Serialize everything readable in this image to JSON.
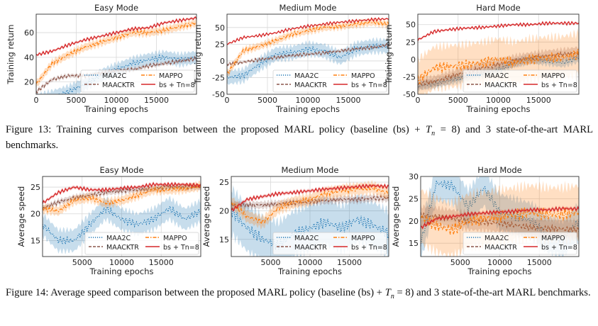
{
  "legend_colors": {
    "MAA2C": "#1f77b4",
    "MAACKTR": "#8c564b",
    "MAPPO": "#ff7f0e",
    "bs + Tn=8": "#d62728"
  },
  "captions": {
    "fig13": {
      "before": "Figure 13: Training curves comparison between the proposed MARL policy (baseline (bs) + ",
      "math_var": "T",
      "math_sub": "n",
      "after": " = 8) and 3 state-of-the-art MARL benchmarks."
    },
    "fig14": {
      "before": "Figure 14: Average speed comparison between the proposed MARL policy (baseline (bs) + ",
      "math_var": "T",
      "math_sub": "n",
      "after": " = 8) and 3 state-of-the-art MARL benchmarks."
    }
  },
  "chart_data": [
    {
      "type": "line",
      "title": "Easy Mode",
      "xlabel": "Training epochs",
      "ylabel": "Training return",
      "xlim": [
        0,
        20000
      ],
      "ylim": [
        10,
        75
      ],
      "xticks": [
        0,
        5000,
        10000,
        15000
      ],
      "yticks": [
        20,
        40,
        60
      ],
      "grid": true,
      "legend": "lower-right",
      "x": [
        0,
        2000,
        4000,
        6000,
        8000,
        10000,
        12000,
        14000,
        16000,
        18000,
        20000
      ],
      "series": [
        {
          "name": "MAA2C",
          "style": "dotted",
          "band": 5,
          "values": [
            5,
            8,
            12,
            18,
            25,
            30,
            35,
            38,
            40,
            38,
            40
          ]
        },
        {
          "name": "MAACKTR",
          "style": "dashed",
          "band": 1.5,
          "values": [
            12,
            22,
            25,
            25,
            27,
            29,
            30,
            33,
            35,
            37,
            39
          ]
        },
        {
          "name": "MAPPO",
          "style": "dashdot",
          "band": 3,
          "values": [
            18,
            35,
            42,
            48,
            52,
            56,
            60,
            60,
            62,
            65,
            68
          ]
        },
        {
          "name": "bs + Tn=8",
          "style": "solid",
          "band": 1,
          "values": [
            42,
            45,
            50,
            54,
            57,
            60,
            63,
            64,
            68,
            70,
            72
          ]
        }
      ]
    },
    {
      "type": "line",
      "title": "Medium Mode",
      "xlabel": "Training epochs",
      "ylabel": "Training return",
      "xlim": [
        0,
        20000
      ],
      "ylim": [
        -50,
        70
      ],
      "xticks": [
        0,
        5000,
        10000,
        15000
      ],
      "yticks": [
        -50,
        -25,
        0,
        25,
        50
      ],
      "grid": true,
      "legend": "lower-right",
      "x": [
        0,
        2000,
        4000,
        6000,
        8000,
        10000,
        12000,
        14000,
        16000,
        18000,
        20000
      ],
      "series": [
        {
          "name": "MAA2C",
          "style": "dotted",
          "band": 10,
          "values": [
            -25,
            -22,
            -5,
            10,
            12,
            18,
            15,
            5,
            18,
            22,
            22
          ]
        },
        {
          "name": "MAACKTR",
          "style": "dashed",
          "band": 2,
          "values": [
            -5,
            -2,
            2,
            5,
            8,
            10,
            12,
            15,
            18,
            20,
            24
          ]
        },
        {
          "name": "MAPPO",
          "style": "dashdot",
          "band": 5,
          "values": [
            -20,
            15,
            22,
            30,
            40,
            45,
            50,
            52,
            55,
            58,
            55
          ]
        },
        {
          "name": "bs + Tn=8",
          "style": "solid",
          "band": 1,
          "values": [
            25,
            35,
            38,
            42,
            48,
            52,
            55,
            58,
            60,
            62,
            63
          ]
        }
      ]
    },
    {
      "type": "line",
      "title": "Hard Mode",
      "xlabel": "Training epochs",
      "ylabel": "Training return",
      "xlim": [
        0,
        20000
      ],
      "ylim": [
        -50,
        65
      ],
      "xticks": [
        0,
        5000,
        10000,
        15000
      ],
      "yticks": [
        -50,
        -25,
        0,
        25,
        50
      ],
      "grid": true,
      "legend": "lower-right",
      "x": [
        0,
        2000,
        4000,
        6000,
        8000,
        10000,
        12000,
        14000,
        16000,
        18000,
        20000
      ],
      "series": [
        {
          "name": "MAA2C",
          "style": "dotted",
          "band": 6,
          "values": [
            -38,
            -35,
            -30,
            -25,
            -20,
            -15,
            -5,
            0,
            -2,
            -5,
            2
          ]
        },
        {
          "name": "MAACKTR",
          "style": "dashed",
          "band": 8,
          "values": [
            -35,
            -32,
            -25,
            -18,
            -12,
            -7,
            -2,
            2,
            5,
            7,
            10
          ]
        },
        {
          "name": "MAPPO",
          "style": "dashdot",
          "band": 30,
          "values": [
            -30,
            -12,
            -10,
            -8,
            -5,
            0,
            -5,
            0,
            2,
            3,
            8
          ]
        },
        {
          "name": "bs + Tn=8",
          "style": "solid",
          "band": 1.5,
          "values": [
            28,
            40,
            43,
            45,
            46,
            48,
            50,
            50,
            52,
            52,
            52
          ]
        }
      ]
    },
    {
      "type": "line",
      "title": "Easy Mode",
      "xlabel": "Training epochs",
      "ylabel": "Average speed",
      "xlim": [
        0,
        20000
      ],
      "ylim": [
        12,
        27
      ],
      "xticks": [
        5000,
        10000,
        15000
      ],
      "yticks": [
        15,
        20,
        25
      ],
      "grid": true,
      "legend": "lower-right",
      "x": [
        0,
        2000,
        4000,
        6000,
        8000,
        10000,
        12000,
        14000,
        16000,
        18000,
        20000
      ],
      "series": [
        {
          "name": "MAA2C",
          "style": "dotted",
          "band": 2,
          "values": [
            18,
            15,
            15,
            18,
            21,
            19,
            18,
            19,
            21,
            19,
            20.5
          ]
        },
        {
          "name": "MAACKTR",
          "style": "dashed",
          "band": 0.5,
          "values": [
            21,
            22.2,
            23,
            23.5,
            24,
            24.3,
            24.5,
            24.7,
            25,
            25,
            25
          ]
        },
        {
          "name": "MAPPO",
          "style": "dashdot",
          "band": 0.8,
          "values": [
            21,
            20.5,
            22.5,
            23,
            22,
            22.5,
            23.5,
            24.5,
            24.5,
            24.7,
            25.2
          ]
        },
        {
          "name": "bs + Tn=8",
          "style": "solid",
          "band": 0.3,
          "values": [
            22,
            24,
            25,
            24.5,
            24.5,
            24.8,
            25,
            25.5,
            25.5,
            25.5,
            25.3
          ]
        }
      ]
    },
    {
      "type": "line",
      "title": "Medium Mode",
      "xlabel": "Training epochs",
      "ylabel": "Average speed",
      "xlim": [
        0,
        20000
      ],
      "ylim": [
        12,
        26
      ],
      "xticks": [
        5000,
        10000,
        15000
      ],
      "yticks": [
        15,
        20,
        25
      ],
      "grid": true,
      "legend": "lower-right",
      "x": [
        0,
        2000,
        4000,
        6000,
        8000,
        10000,
        12000,
        14000,
        16000,
        18000,
        20000
      ],
      "series": [
        {
          "name": "MAA2C",
          "style": "dotted",
          "band": 4,
          "values": [
            20,
            17,
            15,
            14,
            16,
            17,
            18,
            17,
            18.5,
            17.5,
            16
          ]
        },
        {
          "name": "MAACKTR",
          "style": "dashed",
          "band": 0.6,
          "values": [
            21,
            21,
            21,
            21.2,
            21.4,
            21.6,
            21.8,
            22,
            22,
            22.2,
            22.2
          ]
        },
        {
          "name": "MAPPO",
          "style": "dashdot",
          "band": 1,
          "values": [
            21.5,
            19,
            18,
            20.5,
            21.5,
            22,
            23,
            23.5,
            23.8,
            24,
            23
          ]
        },
        {
          "name": "bs + Tn=8",
          "style": "solid",
          "band": 0.3,
          "values": [
            20,
            22,
            22.5,
            23,
            23.2,
            23.5,
            23.8,
            24,
            24.2,
            24.4,
            24.2
          ]
        }
      ]
    },
    {
      "type": "line",
      "title": "Hard Mode",
      "xlabel": "Training epochs",
      "ylabel": "Average speed",
      "xlim": [
        0,
        20000
      ],
      "ylim": [
        12,
        30
      ],
      "xticks": [
        5000,
        10000,
        15000
      ],
      "yticks": [
        15,
        20,
        25,
        30
      ],
      "grid": true,
      "legend": "lower-right",
      "x": [
        0,
        2000,
        4000,
        6000,
        8000,
        10000,
        12000,
        14000,
        16000,
        18000,
        20000
      ],
      "series": [
        {
          "name": "MAA2C",
          "style": "dotted",
          "band": 4,
          "values": [
            15,
            28.5,
            28,
            23,
            27.5,
            22,
            21,
            20,
            17,
            16,
            20
          ]
        },
        {
          "name": "MAACKTR",
          "style": "dashed",
          "band": 2,
          "values": [
            21.3,
            21,
            20.5,
            20,
            19.8,
            19.5,
            19,
            18.5,
            18.3,
            18.2,
            18
          ]
        },
        {
          "name": "MAPPO",
          "style": "dashdot",
          "band": 6,
          "values": [
            21,
            19,
            18,
            20,
            20.5,
            21,
            21.5,
            22,
            21.5,
            21.5,
            22
          ]
        },
        {
          "name": "bs + Tn=8",
          "style": "solid",
          "band": 0.4,
          "values": [
            18.5,
            20.5,
            21,
            21.5,
            21.8,
            22,
            22.2,
            22.5,
            22.5,
            22.8,
            22.7
          ]
        }
      ]
    }
  ]
}
